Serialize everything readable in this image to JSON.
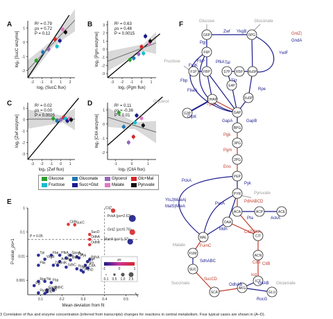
{
  "panel_labels": {
    "a": "A",
    "b": "B",
    "c": "C",
    "d": "D",
    "e": "E",
    "f": "F"
  },
  "panels": {
    "A": {
      "ylabel": "log₂ [SucC enzyme]",
      "xlabel": "log₂ (SucC flux)",
      "stats": [
        "R² = 0.79",
        "ρs = 0.72",
        "P = 0.12"
      ],
      "xticks": [
        "-2",
        "-1",
        "0",
        "1",
        "2"
      ],
      "yticks": [
        "1",
        "0",
        "-1",
        "-2"
      ]
    },
    "B": {
      "ylabel": "log₂ [Pgm enzyme]",
      "xlabel": "log₂ (Pgm flux)",
      "stats": [
        "R² = 0.63",
        "ρs = 0.48",
        "P = 0.0015"
      ],
      "xticks": [
        "-3",
        "-2",
        "-1",
        "0",
        "1"
      ],
      "yticks": [
        "3",
        "2",
        "1",
        "0",
        "-1",
        "-2",
        "-3"
      ]
    },
    "C": {
      "ylabel": "log₂ [Zwf enzyme]",
      "xlabel": "log₂ (Zwf flux)",
      "stats": [
        "R² = 0.02",
        "ρs = 0.00",
        "P = 0.0025"
      ],
      "xticks": [
        "-3",
        "-2",
        "-1",
        "0",
        "1"
      ],
      "yticks": [
        "1",
        "0",
        "-1",
        "-2",
        "-3"
      ]
    },
    "D": {
      "ylabel": "log₂ [CitA enzyme]",
      "xlabel": "log₂ (CitA flux)",
      "stats": [
        "R² = 0.11",
        "ρs = -0.36",
        "P = 0.01"
      ],
      "xticks": [
        "-1",
        "0",
        "1"
      ],
      "yticks": [
        "1",
        "0",
        "-1",
        "-2"
      ]
    },
    "E": {
      "ylabel": "P-value_ρs=1",
      "xlabel": "Mean deviation from fit",
      "yticks": [
        "1",
        "0.1",
        "0.01",
        "0.001"
      ],
      "xticks": [
        "0.1",
        "0.2",
        "0.3",
        "0.4",
        "0.5"
      ],
      "pline": "P = 0.05",
      "colorbar_title": "ρs",
      "colorbar_ticks": [
        "-1",
        "0",
        "1"
      ],
      "size_title": "σ_lfod(flux)",
      "size_ticks": [
        "0.1",
        "0.5",
        "1.0",
        "2.5"
      ]
    }
  },
  "legend": [
    {
      "label": "Glucose",
      "color": "#2ca02c"
    },
    {
      "label": "Gluconate",
      "color": "#1f77b4"
    },
    {
      "label": "Glycerol",
      "color": "#9467bd"
    },
    {
      "label": "Glc+Mal",
      "color": "#d62728"
    },
    {
      "label": "Fructose",
      "color": "#17becf"
    },
    {
      "label": "Succ+Glut",
      "color": "#1a1a8c"
    },
    {
      "label": "Malate",
      "color": "#e377c2"
    },
    {
      "label": "Pyruvate",
      "color": "#111111"
    }
  ],
  "chart_data": [
    {
      "type": "scatter",
      "panel": "A",
      "x": [
        -1.6,
        -0.9,
        -0.3,
        0.4,
        0.6,
        0.9,
        1.2,
        1.5
      ],
      "y": [
        -1.3,
        -0.7,
        -0.5,
        0.2,
        -0.3,
        0.1,
        0.9,
        0.7
      ],
      "series_colors": [
        "#d62728",
        "#2ca02c",
        "#17becf",
        "#e377c2",
        "#1f77b4",
        "#9467bd",
        "#111111",
        "#1a1a8c"
      ],
      "xlim": [
        -2.5,
        2.5
      ],
      "ylim": [
        -2.5,
        1.5
      ]
    },
    {
      "type": "scatter",
      "panel": "B",
      "x": [
        -1.2,
        -0.8,
        -0.3,
        0.0,
        0.2,
        0.4,
        0.8,
        0.9
      ],
      "y": [
        -1.3,
        -1.1,
        -0.6,
        0.3,
        -0.5,
        1.6,
        0.7,
        1.0
      ],
      "xlim": [
        -3.5,
        1.5
      ],
      "ylim": [
        -3.5,
        3.5
      ]
    },
    {
      "type": "scatter",
      "panel": "C",
      "x": [
        -0.8,
        -0.4,
        0.0,
        0.3,
        0.5,
        0.7,
        0.9,
        1.1
      ],
      "y": [
        0.1,
        -0.1,
        0.0,
        0.2,
        0.1,
        -0.1,
        0.1,
        0.0
      ],
      "xlim": [
        -3.5,
        1.5
      ],
      "ylim": [
        -3.5,
        1.5
      ]
    },
    {
      "type": "scatter",
      "panel": "D",
      "x": [
        -0.8,
        -0.5,
        -0.2,
        0.1,
        0.2,
        0.3,
        0.6,
        0.7
      ],
      "y": [
        0.8,
        -0.2,
        -1.3,
        -0.9,
        0.1,
        0.6,
        0.4,
        -0.1
      ],
      "xlim": [
        -1.5,
        1.5
      ],
      "ylim": [
        -2.5,
        1.5
      ]
    },
    {
      "type": "scatter",
      "panel": "E",
      "xlabel": "Mean deviation from fit",
      "ylabel": "P-value",
      "points": [
        {
          "label": "CitZ",
          "x": 0.44,
          "p": 0.78,
          "c": "#d62728",
          "s": 2
        },
        {
          "label": "PckA (ρs=2.52)",
          "x": 0.53,
          "p": 0.37,
          "c": "#1a1a8c",
          "s": 4
        },
        {
          "label": "GntZ (ρs=0.76)",
          "x": 0.53,
          "p": 0.1,
          "c": "#d62728",
          "s": 3
        },
        {
          "label": "MaeA (ρs=1.37)",
          "x": 0.52,
          "p": 0.04,
          "c": "#1a1a8c",
          "s": 3
        },
        {
          "label": "SucC",
          "x": 0.26,
          "p": 0.2,
          "c": "#d62728",
          "s": 1
        },
        {
          "label": "CitB",
          "x": 0.23,
          "p": 0.21,
          "c": "#d62728",
          "s": 1
        },
        {
          "label": "SucD",
          "x": 0.33,
          "p": 0.08,
          "c": "#d62728",
          "s": 1
        },
        {
          "label": "OdhA",
          "x": 0.33,
          "p": 0.05,
          "c": "#d62728",
          "s": 1
        },
        {
          "label": "OdhB",
          "x": 0.33,
          "p": 0.03,
          "c": "#d62728",
          "s": 1
        },
        {
          "label": "Tpi",
          "x": 0.09,
          "p": 0.011,
          "c": "#1a1a8c",
          "s": 1
        },
        {
          "label": "Fbp",
          "x": 0.15,
          "p": 0.011,
          "c": "#1a1a8c",
          "s": 1
        },
        {
          "label": "PfkA",
          "x": 0.19,
          "p": 0.011,
          "c": "#1a1a8c",
          "s": 1
        },
        {
          "label": "GpsA",
          "x": 0.24,
          "p": 0.011,
          "c": "#1a1a8c",
          "s": 1
        },
        {
          "label": "YkgB",
          "x": 0.12,
          "p": 0.0075,
          "c": "#1a1a8c",
          "s": 1
        },
        {
          "label": "Eno",
          "x": 0.22,
          "p": 0.0085,
          "c": "#1a1a8c",
          "s": 1
        },
        {
          "label": "Pyk",
          "x": 0.28,
          "p": 0.0085,
          "c": "#1a1a8c",
          "s": 1
        },
        {
          "label": "Pta",
          "x": 0.27,
          "p": 0.0095,
          "c": "#1a1a8c",
          "s": 1
        },
        {
          "label": "Mdh",
          "x": 0.24,
          "p": 0.007,
          "c": "#1a1a8c",
          "s": 1
        },
        {
          "label": "AckA",
          "x": 0.19,
          "p": 0.006,
          "c": "#1a1a8c",
          "s": 1
        },
        {
          "label": "PdhA",
          "x": 0.33,
          "p": 0.0072,
          "c": "#1a1a8c",
          "s": 1
        },
        {
          "label": "Pgk",
          "x": 0.32,
          "p": 0.006,
          "c": "#1a1a8c",
          "s": 1
        },
        {
          "label": "Pgm",
          "x": 0.31,
          "p": 0.0042,
          "c": "#1a1a8c",
          "s": 1
        },
        {
          "label": "MalS",
          "x": 0.46,
          "p": 0.004,
          "c": "#1a1a8c",
          "s": 1
        },
        {
          "label": "Pkk",
          "x": 0.09,
          "p": 0.0042,
          "c": "#1a1a8c",
          "s": 1
        },
        {
          "label": "Zwf",
          "x": 0.16,
          "p": 0.0042,
          "c": "#1a1a8c",
          "s": 1
        },
        {
          "label": "GntK",
          "x": 0.18,
          "p": 0.0042,
          "c": "#1a1a8c",
          "s": 1
        },
        {
          "label": "SdhC",
          "x": 0.22,
          "p": 0.0035,
          "c": "#1a1a8c",
          "s": 1
        },
        {
          "label": "PpcA",
          "x": 0.27,
          "p": 0.003,
          "c": "#1a1a8c",
          "s": 1
        },
        {
          "label": "PfkB",
          "x": 0.29,
          "p": 0.0026,
          "c": "#1a1a8c",
          "s": 1
        },
        {
          "label": "PdhD",
          "x": 0.3,
          "p": 0.0022,
          "c": "#1a1a8c",
          "s": 1
        },
        {
          "label": "CitA",
          "x": 0.32,
          "p": 0.0032,
          "c": "#1a1a8c",
          "s": 1
        },
        {
          "label": "Rpe",
          "x": 0.09,
          "p": 0.0009,
          "c": "#1a1a8c",
          "s": 1
        },
        {
          "label": "Tkt",
          "x": 0.12,
          "p": 0.0009,
          "c": "#1a1a8c",
          "s": 1
        },
        {
          "label": "Fbp",
          "x": 0.15,
          "p": 0.0008,
          "c": "#1a1a8c",
          "s": 1
        },
        {
          "label": "GapB",
          "x": 0.13,
          "p": 0.0004,
          "c": "#1a1a8c",
          "s": 1
        },
        {
          "label": "Pgi",
          "x": 0.07,
          "p": 0.0006,
          "c": "#1a1a8c",
          "s": 1
        },
        {
          "label": "PdhC",
          "x": 0.16,
          "p": 0.0004,
          "c": "#1a1a8c",
          "s": 1
        },
        {
          "label": "PdhB",
          "x": 0.13,
          "p": 0.00033,
          "c": "#1a1a8c",
          "s": 1
        },
        {
          "label": "FbaA",
          "x": 0.09,
          "p": 0.0003,
          "c": "#1a1a8c",
          "s": 1
        },
        {
          "label": "GapA",
          "x": 0.12,
          "p": 0.00028,
          "c": "#1a1a8c",
          "s": 1
        }
      ]
    }
  ],
  "pathway": {
    "inputs": [
      "Glucose",
      "Gluconate",
      "Fructose",
      "Glycerol",
      "Pyruvate",
      "Malate",
      "Succinate",
      "Glutamate"
    ],
    "metabolites": [
      "G6P",
      "6PG",
      "F6P",
      "F1P",
      "FBP",
      "S7P",
      "R5P",
      "Ru5P",
      "E4P",
      "Xu5P",
      "GAP",
      "DHAP",
      "G3P",
      "BPG",
      "3PG",
      "2PG",
      "PEP",
      "PYR",
      "ACA",
      "ACP",
      "ACE",
      "OAA",
      "MAL",
      "CIT",
      "ACN",
      "ICT",
      "AKG",
      "GLU",
      "SCA",
      "SUC",
      "FUM"
    ],
    "enzymes_blue": [
      "Zwf",
      "YkgB",
      "Pgi",
      "FbP",
      "PfkA",
      "Tal",
      "Tkt",
      "Rpe",
      "FruK",
      "Fbp",
      "FbaA",
      "GlpK",
      "GapA",
      "GapB",
      "Pyk",
      "PckA",
      "Mdh",
      "PycA",
      "Pta",
      "AckA",
      "GltAB",
      "RocG",
      "SdhABC",
      "OdhAB",
      "YtsJ|MaeA|",
      "MalS|MleA",
      "YwlF",
      "GndA",
      "Icd"
    ],
    "enzymes_red": [
      "GntZ",
      "TpiA",
      "Pgk",
      "Pgm",
      "Eno",
      "PdhABCD",
      "CitZ|CitA",
      "CitB",
      "FumC",
      "SucCD"
    ]
  },
  "caption": "3   Correlation of flux and enzyme concentration (inferred from transcripts) changes for reactions in central metabolism. Four typical cases are shown in (A–D)."
}
